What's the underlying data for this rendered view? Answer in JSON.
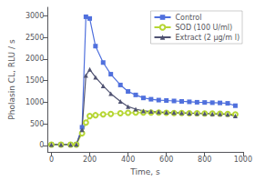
{
  "chart_data": {
    "type": "line",
    "title": "",
    "xlabel": "Time, s",
    "ylabel": "Pholasin CL, RLU / s",
    "xlim": [
      -20,
      1000
    ],
    "ylim": [
      -150,
      3200
    ],
    "xticks": [
      0,
      200,
      400,
      600,
      800,
      1000
    ],
    "yticks": [
      0,
      500,
      1000,
      1500,
      2000,
      2500,
      3000
    ],
    "grid": false,
    "legend": "upper right",
    "series": [
      {
        "name": "Control",
        "marker": "square",
        "x": [
          0,
          50,
          100,
          130,
          160,
          180,
          200,
          230,
          270,
          310,
          360,
          400,
          440,
          480,
          520,
          560,
          600,
          640,
          680,
          720,
          760,
          800,
          840,
          880,
          920,
          960
        ],
        "values": [
          20,
          20,
          20,
          25,
          420,
          2980,
          2940,
          2300,
          1920,
          1650,
          1400,
          1250,
          1170,
          1100,
          1070,
          1050,
          1040,
          1030,
          1020,
          1010,
          1000,
          995,
          990,
          985,
          975,
          920
        ]
      },
      {
        "name": "SOD (100 U/ml)",
        "marker": "open_circle",
        "x": [
          0,
          50,
          100,
          130,
          160,
          180,
          200,
          230,
          270,
          310,
          360,
          400,
          440,
          480,
          520,
          560,
          600,
          640,
          680,
          720,
          760,
          800,
          840,
          880,
          920,
          960
        ],
        "values": [
          20,
          20,
          20,
          20,
          280,
          530,
          680,
          700,
          720,
          730,
          745,
          755,
          760,
          760,
          760,
          760,
          755,
          750,
          750,
          745,
          745,
          740,
          740,
          735,
          730,
          720
        ]
      },
      {
        "name": "Extract (2 µg/m l)",
        "marker": "triangle",
        "x": [
          0,
          50,
          100,
          130,
          160,
          180,
          200,
          230,
          270,
          310,
          360,
          400,
          440,
          480,
          520,
          560,
          600,
          640,
          680,
          720,
          760,
          800,
          840,
          880,
          920,
          960
        ],
        "values": [
          20,
          20,
          20,
          25,
          360,
          1620,
          1760,
          1580,
          1380,
          1200,
          1020,
          900,
          840,
          800,
          785,
          775,
          765,
          760,
          755,
          748,
          742,
          738,
          732,
          728,
          720,
          680
        ]
      }
    ]
  }
}
